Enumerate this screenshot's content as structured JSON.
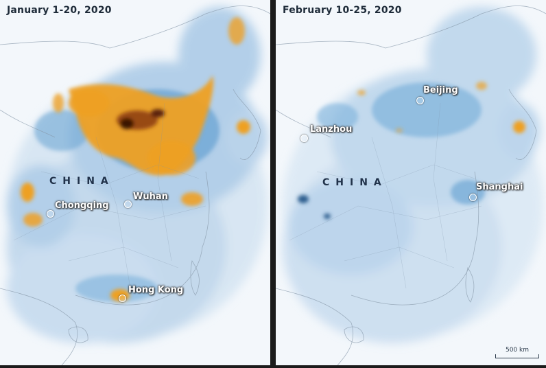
{
  "panels": [
    {
      "title": "January 1-20, 2020",
      "country": "CHINA",
      "cities": [
        {
          "name": "Chongqing"
        },
        {
          "name": "Wuhan"
        },
        {
          "name": "Hong Kong"
        }
      ]
    },
    {
      "title": "February 10-25, 2020",
      "country": "CHINA",
      "cities": [
        {
          "name": "Beijing"
        },
        {
          "name": "Lanzhou"
        },
        {
          "name": "Shanghai"
        }
      ]
    }
  ],
  "scale_bar": {
    "label": "500 km"
  },
  "colors": {
    "low": "#c9def0",
    "mid": "#5f9fd0",
    "high": "#f0a020",
    "peak": "#3a1205"
  }
}
